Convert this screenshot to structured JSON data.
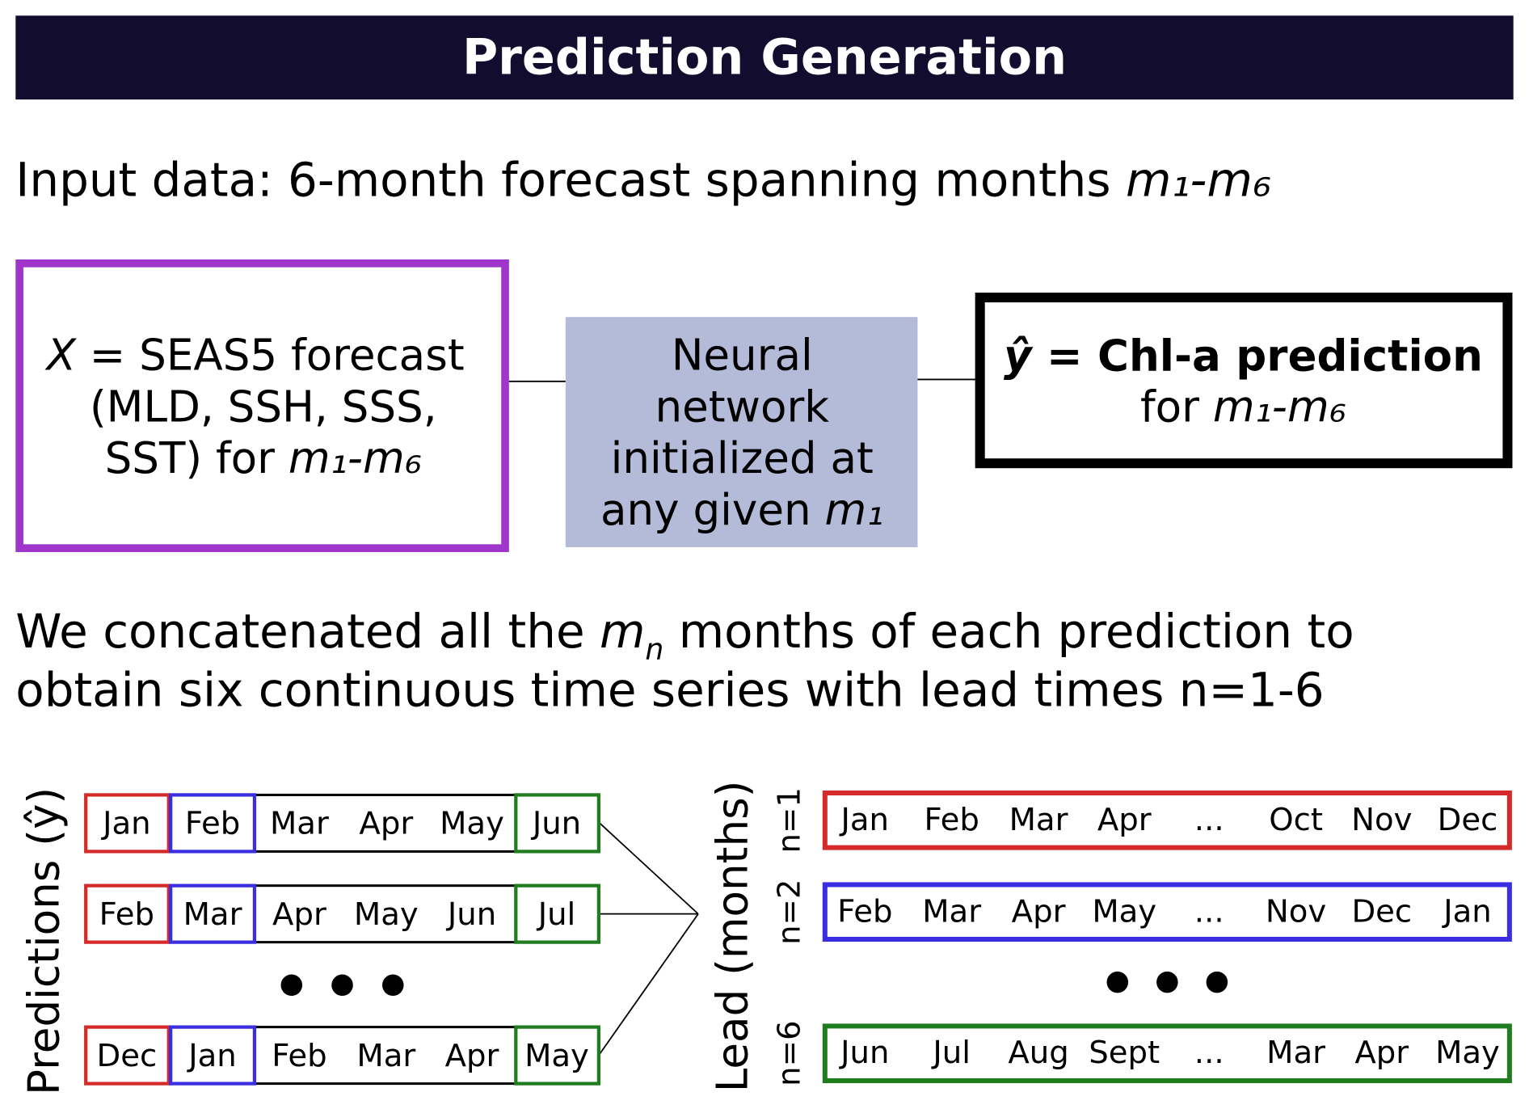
{
  "header": {
    "title": "Prediction Generation"
  },
  "intro": {
    "text": "Input data: 6-month forecast spanning months ",
    "months": "m₁-m₆"
  },
  "input_box": {
    "symbol": "X",
    "line1": " = SEAS5 forecast",
    "line2": "(MLD, SSH, SSS,",
    "line3": "SST) for ",
    "months": "m₁-m₆"
  },
  "network_box": {
    "lines": [
      "Neural",
      "network",
      "initialized at",
      "any given "
    ],
    "month": "m₁"
  },
  "output_box": {
    "symbol": "ŷ",
    "title": " = Chl-a prediction",
    "for": "for ",
    "months": "m₁-m₆"
  },
  "concat": {
    "start": "We concatenated all the ",
    "variable": "m",
    "subscript": "n",
    "end": " months of each prediction to",
    "line2": "obtain six continuous time series with lead times n=1-6"
  },
  "predictions": {
    "axis_label": "Predictions (ŷ)",
    "rows": [
      [
        "Jan",
        "Feb",
        "Mar",
        "Apr",
        "May",
        "Jun"
      ],
      [
        "Feb",
        "Mar",
        "Apr",
        "May",
        "Jun",
        "Jul"
      ],
      [
        "Dec",
        "Jan",
        "Feb",
        "Mar",
        "Apr",
        "May"
      ]
    ]
  },
  "lead": {
    "axis_label": "Lead (months)",
    "rows": [
      {
        "label": "n=1",
        "months": [
          "Jan",
          "Feb",
          "Mar",
          "Apr",
          "...",
          "Oct",
          "Nov",
          "Dec"
        ]
      },
      {
        "label": "n=2",
        "months": [
          "Feb",
          "Mar",
          "Apr",
          "May",
          "...",
          "Nov",
          "Dec",
          "Jan"
        ]
      },
      {
        "label": "n=6",
        "months": [
          "Jun",
          "Jul",
          "Aug",
          "Sept",
          "...",
          "Mar",
          "Apr",
          "May"
        ]
      }
    ]
  }
}
